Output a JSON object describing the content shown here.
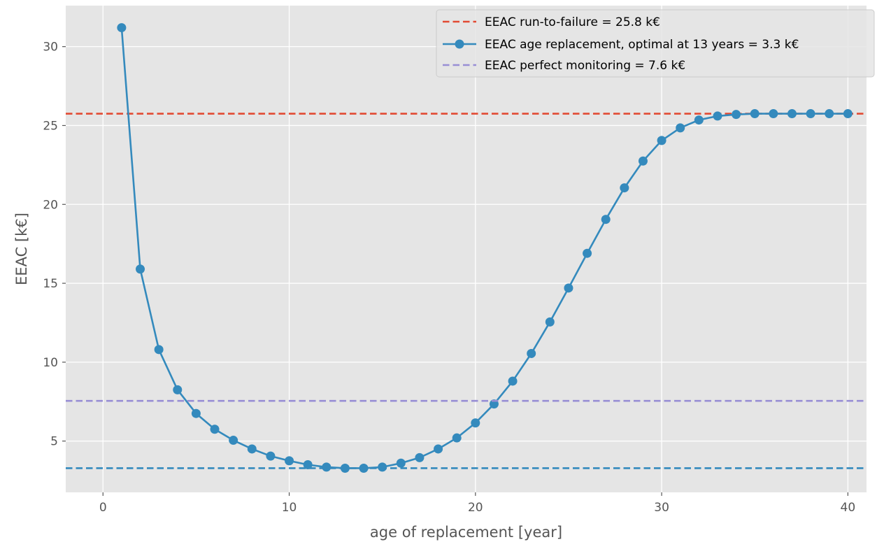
{
  "chart_data": {
    "type": "line",
    "title": "",
    "xlabel": "age of replacement [year]",
    "ylabel": "EEAC [k€]",
    "xlim": [
      -2,
      41
    ],
    "ylim": [
      1.75,
      32.6
    ],
    "xticks": [
      0,
      10,
      20,
      30,
      40
    ],
    "yticks": [
      5,
      10,
      15,
      20,
      25,
      30
    ],
    "grid": true,
    "background": "#E5E5E5",
    "legend_position": "top-right",
    "series": [
      {
        "name": "EEAC run-to-failure = 25.8 k€",
        "style": "dashed",
        "color": "#E24A33",
        "x": [
          -2,
          41
        ],
        "y": [
          25.75,
          25.75
        ]
      },
      {
        "name": "EEAC age replacement, optimal at 13 years = 3.3 k€",
        "style": "line-marker",
        "color": "#348ABD",
        "x": [
          1,
          2,
          3,
          4,
          5,
          6,
          7,
          8,
          9,
          10,
          11,
          12,
          13,
          14,
          15,
          16,
          17,
          18,
          19,
          20,
          21,
          22,
          23,
          24,
          25,
          26,
          27,
          28,
          29,
          30,
          31,
          32,
          33,
          34,
          35,
          36,
          37,
          38,
          39,
          40
        ],
        "y": [
          31.2,
          15.9,
          10.8,
          8.25,
          6.75,
          5.75,
          5.05,
          4.5,
          4.05,
          3.75,
          3.5,
          3.35,
          3.28,
          3.28,
          3.35,
          3.6,
          3.95,
          4.5,
          5.2,
          6.15,
          7.35,
          8.8,
          10.55,
          12.55,
          14.7,
          16.9,
          19.05,
          21.05,
          22.75,
          24.05,
          24.85,
          25.35,
          25.6,
          25.7,
          25.75,
          25.75,
          25.75,
          25.75,
          25.75,
          25.75
        ]
      },
      {
        "name": "EEAC perfect monitoring = 7.6 k€",
        "style": "dashed",
        "color": "#988ED5",
        "x": [
          -2,
          41
        ],
        "y": [
          7.55,
          7.55
        ]
      },
      {
        "name": "",
        "style": "dashed",
        "color": "#348ABD",
        "x": [
          -2,
          41
        ],
        "y": [
          3.28,
          3.28
        ]
      }
    ]
  }
}
